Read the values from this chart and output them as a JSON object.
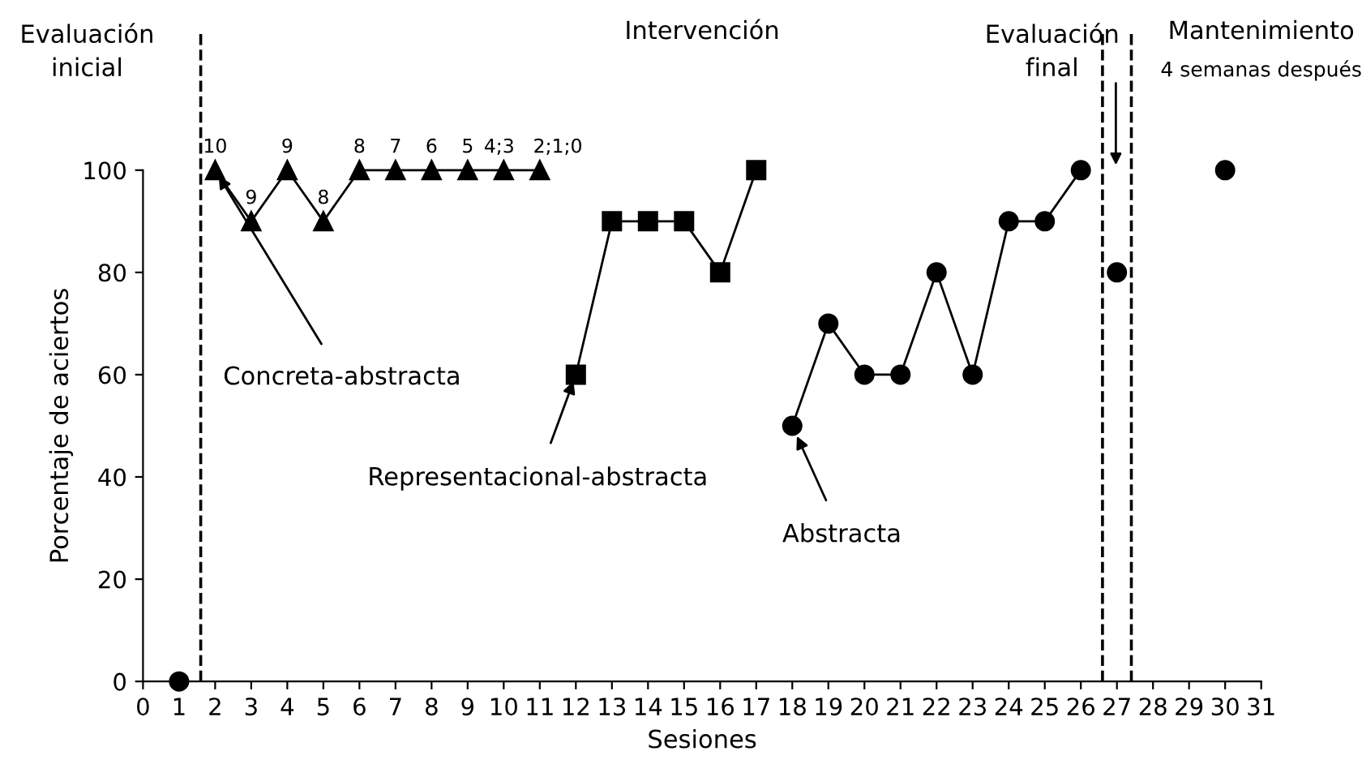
{
  "chart_data": {
    "type": "line",
    "xlabel": "Sesiones",
    "ylabel": "Porcentaje de aciertos",
    "xlim": [
      0,
      31
    ],
    "xticks": [
      0,
      1,
      2,
      3,
      4,
      5,
      6,
      7,
      8,
      9,
      10,
      11,
      12,
      13,
      14,
      15,
      16,
      17,
      18,
      19,
      20,
      21,
      22,
      23,
      24,
      25,
      26,
      27,
      28,
      29,
      30,
      31
    ],
    "ylim": [
      0,
      100
    ],
    "yticks": [
      0,
      20,
      40,
      60,
      80,
      100
    ],
    "grid": false,
    "legend": false,
    "line_style": "solid",
    "series": [
      {
        "color": "#000000",
        "marker": "circle",
        "x": [
          1
        ],
        "values": [
          0
        ]
      },
      {
        "color": "#000000",
        "marker": "triangle",
        "x": [
          2,
          3,
          4,
          5,
          6,
          7,
          8,
          9,
          10,
          11
        ],
        "values": [
          100,
          90,
          100,
          90,
          100,
          100,
          100,
          100,
          100,
          100
        ]
      },
      {
        "color": "#000000",
        "marker": "square",
        "x": [
          12,
          13,
          14,
          15,
          16,
          17
        ],
        "values": [
          60,
          90,
          90,
          90,
          80,
          100
        ]
      },
      {
        "color": "#000000",
        "marker": "circle",
        "x": [
          18,
          19,
          20,
          21,
          22,
          23,
          24,
          25,
          26
        ],
        "values": [
          50,
          70,
          60,
          60,
          80,
          60,
          90,
          90,
          100
        ]
      },
      {
        "color": "#000000",
        "marker": "circle",
        "x": [
          27
        ],
        "values": [
          80
        ]
      },
      {
        "color": "#000000",
        "marker": "circle",
        "x": [
          30
        ],
        "values": [
          100
        ]
      }
    ],
    "ref_lines": [
      {
        "axis": "x",
        "value": 1.6,
        "line_style": "dashed",
        "color": "#000000"
      },
      {
        "axis": "x",
        "value": 26.6,
        "line_style": "dashed",
        "color": "#000000"
      },
      {
        "axis": "x",
        "value": 27.4,
        "line_style": "dashed",
        "color": "#000000"
      }
    ],
    "annotations": [
      "Evaluación\ninicial",
      "Intervención",
      "Evaluación\nfinal",
      "Mantenimiento",
      "4 semanas después",
      {
        "text": "Concreta-abstracta",
        "x": 2,
        "y": 100
      },
      {
        "text": "Representacional-abstracta",
        "x": 12,
        "y": 60
      },
      {
        "text": "Abstracta",
        "x": 18,
        "y": 50
      },
      {
        "text": "10",
        "x": 2,
        "y": 100
      },
      {
        "text": "9",
        "x": 3,
        "y": 90
      },
      {
        "text": "9",
        "x": 4,
        "y": 100
      },
      {
        "text": "8",
        "x": 5,
        "y": 90
      },
      {
        "text": "8",
        "x": 6,
        "y": 100
      },
      {
        "text": "7",
        "x": 7,
        "y": 100
      },
      {
        "text": "6",
        "x": 8,
        "y": 100
      },
      {
        "text": "5",
        "x": 9,
        "y": 100
      },
      {
        "text": "4;3",
        "x": 10,
        "y": 100
      },
      {
        "text": "2;1;0",
        "x": 11,
        "y": 100
      }
    ]
  }
}
